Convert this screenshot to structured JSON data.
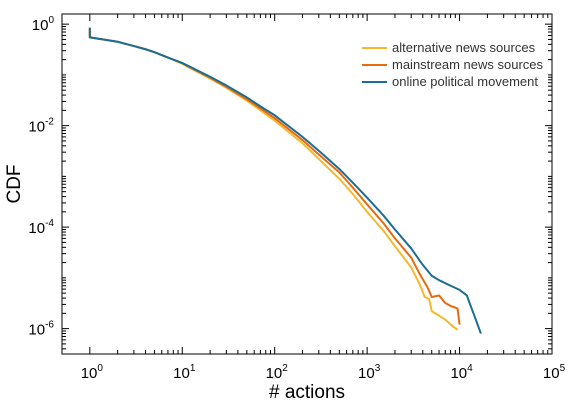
{
  "chart_data": {
    "type": "line",
    "xlabel": "# actions",
    "ylabel": "CDF",
    "xscale": "log",
    "yscale": "log",
    "xlim": [
      0.5,
      100000
    ],
    "ylim": [
      3.16e-07,
      1.585
    ],
    "grid": false,
    "legend_position": "top-right",
    "x_ticks": [
      {
        "value": 1,
        "base": "10",
        "exp": "0"
      },
      {
        "value": 10,
        "base": "10",
        "exp": "1"
      },
      {
        "value": 100,
        "base": "10",
        "exp": "2"
      },
      {
        "value": 1000,
        "base": "10",
        "exp": "3"
      },
      {
        "value": 10000,
        "base": "10",
        "exp": "4"
      },
      {
        "value": 100000,
        "base": "10",
        "exp": "5"
      }
    ],
    "y_ticks": [
      {
        "value": 1,
        "base": "10",
        "exp": "0"
      },
      {
        "value": 0.01,
        "base": "10",
        "exp": "-2"
      },
      {
        "value": 0.0001,
        "base": "10",
        "exp": "-4"
      },
      {
        "value": 1e-06,
        "base": "10",
        "exp": "-6"
      }
    ],
    "series": [
      {
        "name": "alternative news sources",
        "color": "#f5b82e",
        "points": [
          [
            1,
            0.55
          ],
          [
            2,
            0.45
          ],
          [
            3,
            0.37
          ],
          [
            4,
            0.32
          ],
          [
            5,
            0.28
          ],
          [
            7,
            0.22
          ],
          [
            10,
            0.165
          ],
          [
            20,
            0.085
          ],
          [
            30,
            0.056
          ],
          [
            50,
            0.031
          ],
          [
            70,
            0.02
          ],
          [
            100,
            0.0125
          ],
          [
            200,
            0.0045
          ],
          [
            300,
            0.0022
          ],
          [
            500,
            0.0009
          ],
          [
            700,
            0.00045
          ],
          [
            1000,
            0.0002
          ],
          [
            1500,
            8.5e-05
          ],
          [
            2000,
            4.2e-05
          ],
          [
            3000,
            1.6e-05
          ],
          [
            3700,
            7.5e-06
          ],
          [
            4200,
            4.2e-06
          ],
          [
            4700,
            3.8e-06
          ],
          [
            5000,
            2.2e-06
          ],
          [
            6000,
            1.8e-06
          ],
          [
            7000,
            1.5e-06
          ],
          [
            8500,
            1.1e-06
          ],
          [
            9500,
            9.5e-07
          ]
        ]
      },
      {
        "name": "mainstream news sources",
        "color": "#e86a10",
        "points": [
          [
            1,
            0.55
          ],
          [
            2,
            0.45
          ],
          [
            3,
            0.37
          ],
          [
            4,
            0.32
          ],
          [
            5,
            0.28
          ],
          [
            7,
            0.22
          ],
          [
            10,
            0.17
          ],
          [
            20,
            0.088
          ],
          [
            30,
            0.058
          ],
          [
            50,
            0.033
          ],
          [
            70,
            0.022
          ],
          [
            100,
            0.014
          ],
          [
            200,
            0.0052
          ],
          [
            300,
            0.0027
          ],
          [
            500,
            0.0012
          ],
          [
            700,
            0.0006
          ],
          [
            1000,
            0.00028
          ],
          [
            1500,
            0.00012
          ],
          [
            2000,
            6e-05
          ],
          [
            3000,
            2.5e-05
          ],
          [
            3700,
            1.2e-05
          ],
          [
            4500,
            6.5e-06
          ],
          [
            5000,
            4.2e-06
          ],
          [
            6000,
            4.5e-06
          ],
          [
            7000,
            3.2e-06
          ],
          [
            8000,
            2.8e-06
          ],
          [
            9500,
            2.5e-06
          ],
          [
            10000,
            1.2e-06
          ]
        ]
      },
      {
        "name": "online political movement",
        "color": "#1a6e96",
        "points": [
          [
            1,
            0.55
          ],
          [
            2,
            0.45
          ],
          [
            3,
            0.37
          ],
          [
            4,
            0.32
          ],
          [
            5,
            0.28
          ],
          [
            7,
            0.22
          ],
          [
            10,
            0.172
          ],
          [
            20,
            0.092
          ],
          [
            30,
            0.062
          ],
          [
            50,
            0.036
          ],
          [
            70,
            0.024
          ],
          [
            100,
            0.016
          ],
          [
            200,
            0.006
          ],
          [
            300,
            0.0032
          ],
          [
            500,
            0.0014
          ],
          [
            700,
            0.00075
          ],
          [
            1000,
            0.00038
          ],
          [
            1500,
            0.00017
          ],
          [
            2000,
            9e-05
          ],
          [
            3000,
            3.8e-05
          ],
          [
            4000,
            1.8e-05
          ],
          [
            5000,
            1.1e-05
          ],
          [
            6000,
            9e-06
          ],
          [
            8000,
            7e-06
          ],
          [
            10000,
            5.8e-06
          ],
          [
            12000,
            4.5e-06
          ],
          [
            13000,
            3e-06
          ],
          [
            15000,
            1.5e-06
          ],
          [
            17000,
            8e-07
          ]
        ]
      }
    ]
  }
}
